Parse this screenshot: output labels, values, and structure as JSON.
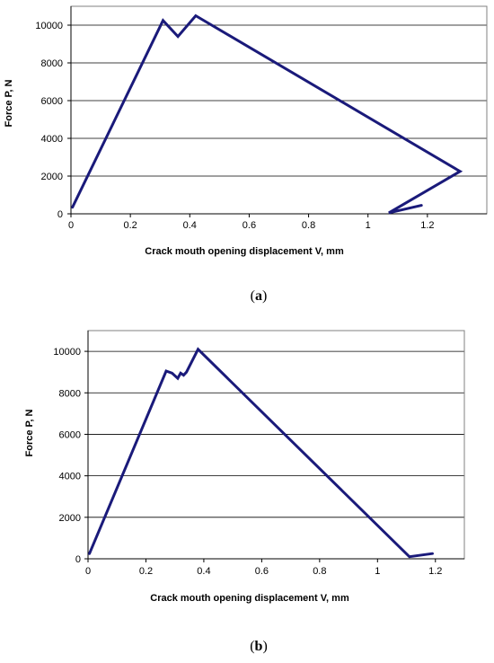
{
  "chart_data": [
    {
      "type": "line",
      "panel_label": "(a)",
      "xlabel": "Crack mouth opening displacement V,  mm",
      "ylabel": "Force P,  N",
      "xlim": [
        0,
        1.4
      ],
      "ylim": [
        0,
        11000
      ],
      "x_ticks": [
        0,
        0.2,
        0.4,
        0.6,
        0.8,
        1,
        1.2
      ],
      "x_tick_labels": [
        "0",
        "0.2",
        "0.4",
        "0.6",
        "0.8",
        "1",
        "1.2"
      ],
      "y_ticks": [
        0,
        2000,
        4000,
        6000,
        8000,
        10000
      ],
      "y_tick_labels": [
        "0",
        "2000",
        "4000",
        "6000",
        "8000",
        "10000"
      ],
      "grid": "horizontal",
      "line_color": "#1a1a7a",
      "series": [
        {
          "x": [
            0.005,
            0.31,
            0.36,
            0.42,
            1.31,
            1.07,
            1.18
          ],
          "y": [
            350,
            10250,
            9400,
            10500,
            2250,
            50,
            450
          ]
        }
      ]
    },
    {
      "type": "line",
      "panel_label": "(b)",
      "xlabel": "Crack mouth opening displacement V,  mm",
      "ylabel": "Force P,  N",
      "xlim": [
        0,
        1.3
      ],
      "ylim": [
        0,
        11000
      ],
      "x_ticks": [
        0,
        0.2,
        0.4,
        0.6,
        0.8,
        1,
        1.2
      ],
      "x_tick_labels": [
        "0",
        "0.2",
        "0.4",
        "0.6",
        "0.8",
        "1",
        "1.2"
      ],
      "y_ticks": [
        0,
        2000,
        4000,
        6000,
        8000,
        10000
      ],
      "y_tick_labels": [
        "0",
        "2000",
        "4000",
        "6000",
        "8000",
        "10000"
      ],
      "grid": "horizontal",
      "line_color": "#1a1a7a",
      "series": [
        {
          "x": [
            0.005,
            0.27,
            0.29,
            0.31,
            0.32,
            0.33,
            0.34,
            0.38,
            1.11,
            1.19
          ],
          "y": [
            250,
            9050,
            8950,
            8700,
            8950,
            8850,
            9000,
            10100,
            100,
            250
          ]
        }
      ]
    }
  ]
}
